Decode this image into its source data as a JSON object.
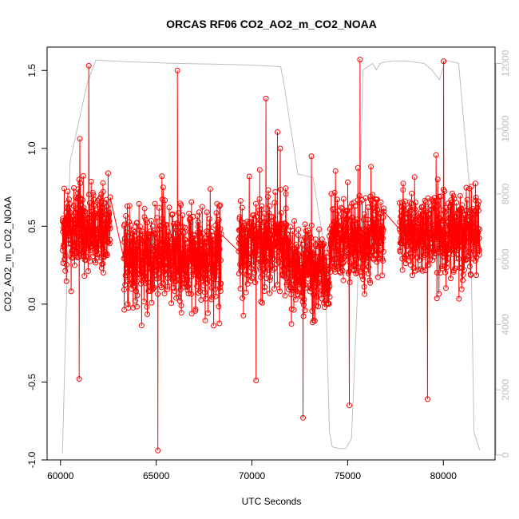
{
  "chart_data": {
    "type": "line",
    "title": "ORCAS RF06 CO2_AO2_m_CO2_NOAA",
    "xlabel": "UTC Seconds",
    "ylabel": "CO2_AO2_m_CO2_NOAA",
    "xlim": [
      59300,
      82700
    ],
    "ylim": [
      -1.0,
      1.65
    ],
    "y2lim": [
      -150,
      12500
    ],
    "x_ticks": [
      "60000",
      "65000",
      "70000",
      "75000",
      "80000"
    ],
    "y_ticks": [
      "-1.0",
      "-0.5",
      "0.0",
      "0.5",
      "1.0",
      "1.5"
    ],
    "y2_ticks": [
      "0",
      "2000",
      "4000",
      "6000",
      "8000",
      "10000",
      "12000"
    ],
    "grid": false,
    "series": [
      {
        "role": "difference",
        "color": "#ff0000",
        "style": "line+open-circle",
        "segments": [
          {
            "x_start": 60100,
            "x_end": 62600,
            "n": 300,
            "center": 0.48,
            "amplitude": 0.3,
            "min": -0.48,
            "max": 1.53
          },
          {
            "x_start": 63300,
            "x_end": 68400,
            "n": 560,
            "center": 0.3,
            "amplitude": 0.33,
            "min": -0.94,
            "max": 1.5
          },
          {
            "x_start": 69300,
            "x_end": 71900,
            "n": 300,
            "center": 0.38,
            "amplitude": 0.3,
            "min": -0.49,
            "max": 1.32
          },
          {
            "x_start": 71900,
            "x_end": 74100,
            "n": 250,
            "center": 0.2,
            "amplitude": 0.3,
            "min": -0.73,
            "max": 0.95
          },
          {
            "x_start": 74100,
            "x_end": 76900,
            "n": 320,
            "center": 0.42,
            "amplitude": 0.3,
            "min": -0.65,
            "max": 1.57
          },
          {
            "x_start": 77700,
            "x_end": 81900,
            "n": 440,
            "center": 0.45,
            "amplitude": 0.3,
            "min": -0.61,
            "max": 1.56
          }
        ]
      },
      {
        "role": "altitude",
        "color": "#bebebe",
        "axis": "right",
        "x": [
          60100,
          60500,
          61400,
          61850,
          62000,
          63500,
          66000,
          68000,
          70000,
          71500,
          71700,
          71900,
          72400,
          72500,
          73200,
          73800,
          74050,
          74200,
          74600,
          74900,
          75200,
          75500,
          75700,
          75800,
          76300,
          76500,
          76700,
          77000,
          77500,
          78000,
          79000,
          79400,
          79800,
          80100,
          80800,
          81400,
          81600,
          81900
        ],
        "y": [
          50,
          9000,
          11400,
          12100,
          12100,
          12050,
          12000,
          11980,
          11950,
          11900,
          11300,
          10500,
          8600,
          8600,
          8500,
          6300,
          700,
          250,
          200,
          200,
          500,
          4800,
          9300,
          11800,
          12000,
          11800,
          12000,
          12050,
          12080,
          12080,
          12000,
          11800,
          11500,
          12100,
          12000,
          8000,
          700,
          150
        ]
      }
    ]
  }
}
